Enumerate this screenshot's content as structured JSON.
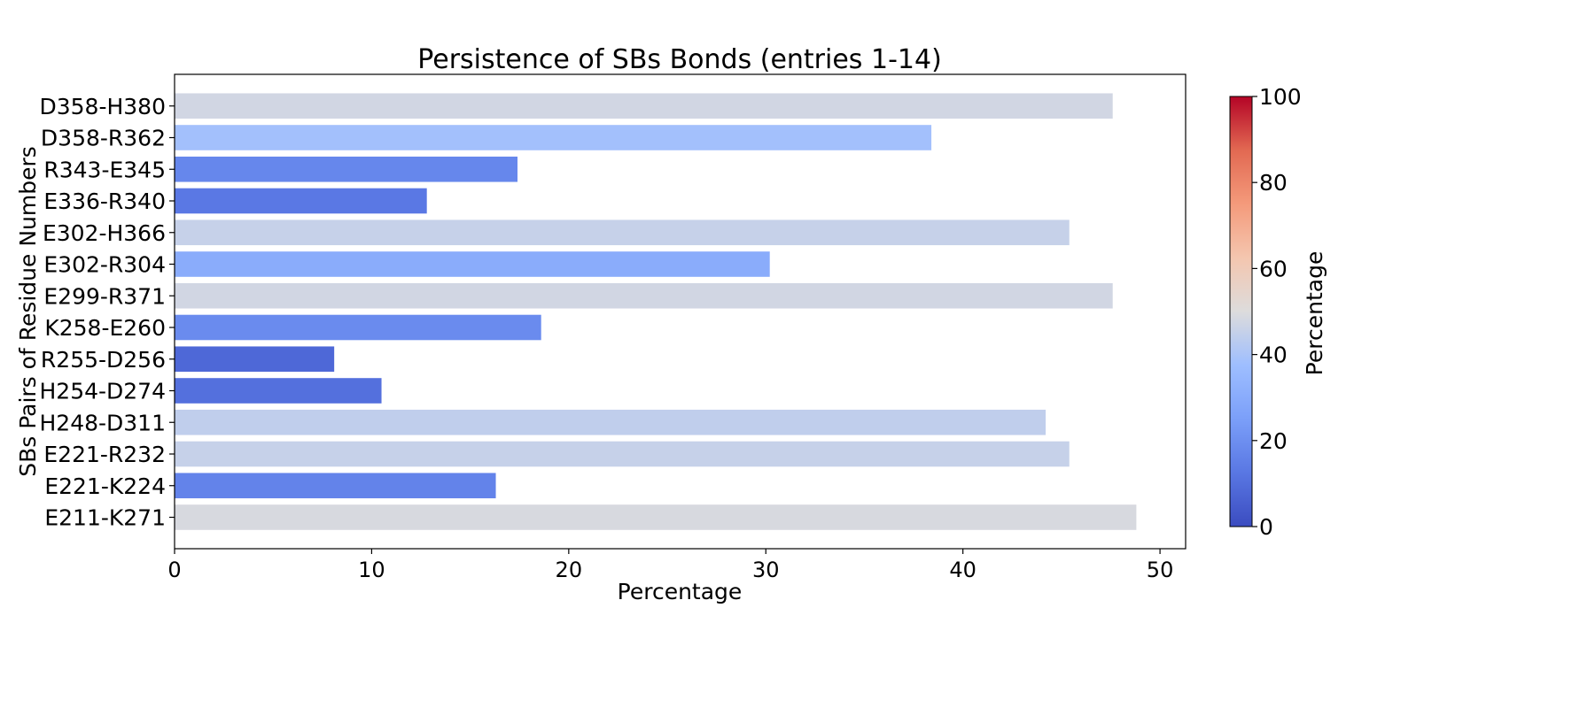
{
  "chart_data": {
    "type": "bar",
    "orientation": "horizontal",
    "title": "Persistence of SBs Bonds (entries 1-14)",
    "xlabel": "Percentage",
    "ylabel": "SBs Pairs of Residue Numbers",
    "xlim": [
      0,
      51.3
    ],
    "xticks": [
      0,
      10,
      20,
      30,
      40,
      50
    ],
    "categories": [
      "E211-K271",
      "E221-K224",
      "E221-R232",
      "H248-D311",
      "H254-D274",
      "R255-D256",
      "K258-E260",
      "E299-R371",
      "E302-R304",
      "E302-H366",
      "E336-R340",
      "R343-E345",
      "D358-R362",
      "D358-H380"
    ],
    "values": [
      48.8,
      16.3,
      45.4,
      44.2,
      10.5,
      8.1,
      18.6,
      47.6,
      30.2,
      45.4,
      12.8,
      17.4,
      38.4,
      47.6
    ],
    "colormap": "coolwarm",
    "colorbar": {
      "label": "Percentage",
      "range": [
        0,
        100
      ],
      "ticks": [
        0,
        20,
        40,
        60,
        80,
        100
      ]
    },
    "grid": false,
    "legend": "none"
  }
}
